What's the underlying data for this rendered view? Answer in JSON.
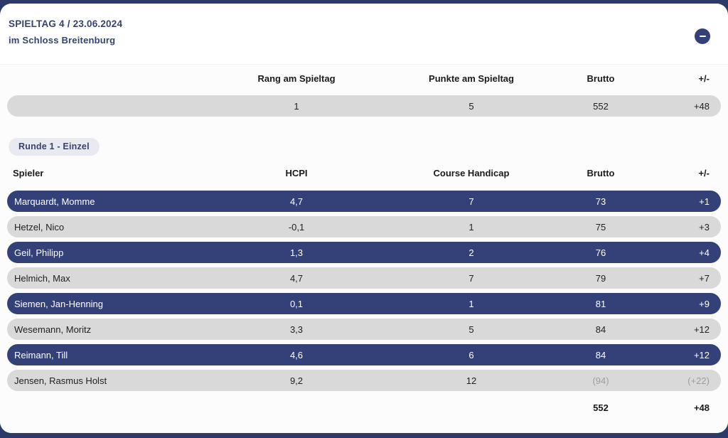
{
  "header": {
    "title": "SPIELTAG 4 / 23.06.2024",
    "subtitle": "im Schloss Breitenburg"
  },
  "summary": {
    "columns": {
      "rank": "Rang am Spieltag",
      "points": "Punkte am Spieltag",
      "brutto": "Brutto",
      "diff": "+/-"
    },
    "values": {
      "rank": "1",
      "points": "5",
      "brutto": "552",
      "diff": "+48"
    }
  },
  "round_chip": "Runde 1 - Einzel",
  "players_table": {
    "columns": {
      "player": "Spieler",
      "hcpi": "HCPI",
      "course_handicap": "Course Handicap",
      "brutto": "Brutto",
      "diff": "+/-"
    },
    "rows": [
      {
        "name": "Marquardt, Momme",
        "hcpi": "4,7",
        "course_handicap": "7",
        "brutto": "73",
        "diff": "+1",
        "highlight": true,
        "muted": false
      },
      {
        "name": "Hetzel, Nico",
        "hcpi": "-0,1",
        "course_handicap": "1",
        "brutto": "75",
        "diff": "+3",
        "highlight": false,
        "muted": false
      },
      {
        "name": "Geil, Philipp",
        "hcpi": "1,3",
        "course_handicap": "2",
        "brutto": "76",
        "diff": "+4",
        "highlight": true,
        "muted": false
      },
      {
        "name": "Helmich, Max",
        "hcpi": "4,7",
        "course_handicap": "7",
        "brutto": "79",
        "diff": "+7",
        "highlight": false,
        "muted": false
      },
      {
        "name": "Siemen, Jan-Henning",
        "hcpi": "0,1",
        "course_handicap": "1",
        "brutto": "81",
        "diff": "+9",
        "highlight": true,
        "muted": false
      },
      {
        "name": "Wesemann, Moritz",
        "hcpi": "3,3",
        "course_handicap": "5",
        "brutto": "84",
        "diff": "+12",
        "highlight": false,
        "muted": false
      },
      {
        "name": "Reimann, Till",
        "hcpi": "4,6",
        "course_handicap": "6",
        "brutto": "84",
        "diff": "+12",
        "highlight": true,
        "muted": false
      },
      {
        "name": "Jensen, Rasmus Holst",
        "hcpi": "9,2",
        "course_handicap": "12",
        "brutto": "(94)",
        "diff": "(+22)",
        "highlight": false,
        "muted": true
      }
    ],
    "totals": {
      "brutto": "552",
      "diff": "+48"
    }
  },
  "colors": {
    "page_background": "#2d3968",
    "highlight_row": "#344178",
    "gray_row": "#d9d9d9",
    "chip_background": "#e9eaf1",
    "navy_text": "#39426f",
    "muted_text": "#9e9e9e"
  }
}
